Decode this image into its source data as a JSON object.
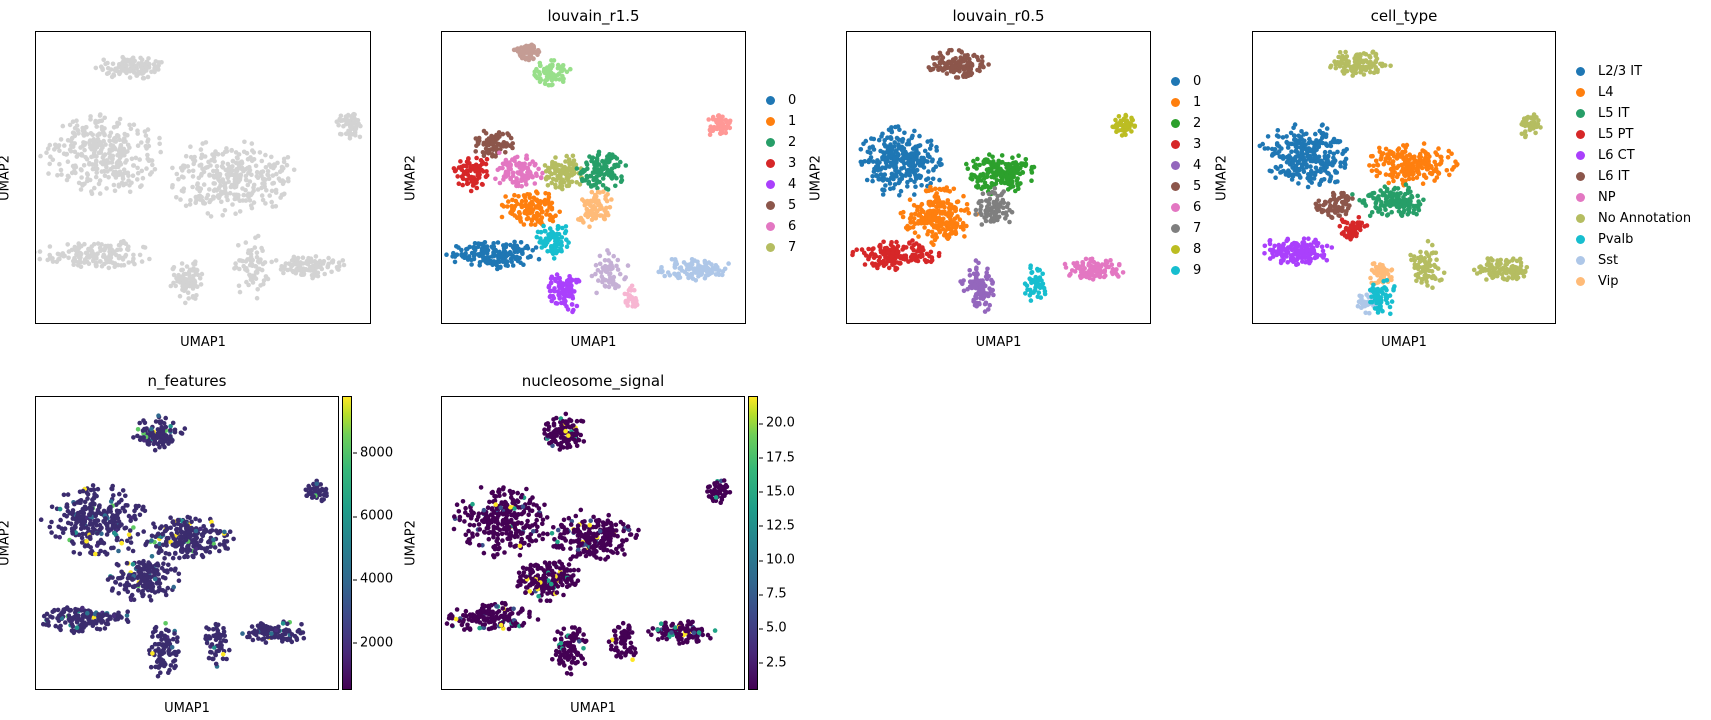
{
  "chart_data": [
    {
      "type": "scatter",
      "title": "",
      "xlabel": "UMAP1",
      "ylabel": "UMAP2",
      "color": "#d3d3d3",
      "clusters": [
        {
          "cx": 0.28,
          "cy": 0.12,
          "rx": 0.1,
          "ry": 0.04,
          "n": 120
        },
        {
          "cx": 0.93,
          "cy": 0.32,
          "rx": 0.04,
          "ry": 0.05,
          "n": 50
        },
        {
          "cx": 0.2,
          "cy": 0.42,
          "rx": 0.18,
          "ry": 0.14,
          "n": 320
        },
        {
          "cx": 0.58,
          "cy": 0.5,
          "rx": 0.2,
          "ry": 0.13,
          "n": 320
        },
        {
          "cx": 0.18,
          "cy": 0.76,
          "rx": 0.18,
          "ry": 0.05,
          "n": 160
        },
        {
          "cx": 0.45,
          "cy": 0.85,
          "rx": 0.05,
          "ry": 0.08,
          "n": 90
        },
        {
          "cx": 0.64,
          "cy": 0.8,
          "rx": 0.06,
          "ry": 0.1,
          "n": 70
        },
        {
          "cx": 0.82,
          "cy": 0.8,
          "rx": 0.1,
          "ry": 0.04,
          "n": 110
        }
      ]
    },
    {
      "type": "scatter",
      "title": "louvain_r1.5",
      "xlabel": "UMAP1",
      "ylabel": "UMAP2",
      "legend_title": "",
      "categories": [
        "0",
        "1",
        "2",
        "3",
        "4",
        "5",
        "6",
        "7"
      ],
      "colors": [
        "#1f77b4",
        "#ff7f0e",
        "#279e68",
        "#d62728",
        "#aa40fc",
        "#8c564b",
        "#e377c2",
        "#b5bd61"
      ],
      "extra_colors": [
        "#c49c94",
        "#98df8a",
        "#ff9896",
        "#17becf",
        "#aec7e8",
        "#f7b6d2",
        "#c5b0d5",
        "#ffbb78"
      ],
      "clusters": [
        {
          "cx": 0.28,
          "cy": 0.07,
          "rx": 0.05,
          "ry": 0.03,
          "n": 60,
          "c": "#c49c94"
        },
        {
          "cx": 0.36,
          "cy": 0.14,
          "rx": 0.06,
          "ry": 0.05,
          "n": 70,
          "c": "#98df8a"
        },
        {
          "cx": 0.91,
          "cy": 0.32,
          "rx": 0.04,
          "ry": 0.04,
          "n": 50,
          "c": "#ff9896"
        },
        {
          "cx": 0.17,
          "cy": 0.38,
          "rx": 0.07,
          "ry": 0.05,
          "n": 80,
          "c": "#8c564b"
        },
        {
          "cx": 0.1,
          "cy": 0.48,
          "rx": 0.06,
          "ry": 0.07,
          "n": 90,
          "c": "#d62728"
        },
        {
          "cx": 0.25,
          "cy": 0.48,
          "rx": 0.08,
          "ry": 0.06,
          "n": 100,
          "c": "#e377c2"
        },
        {
          "cx": 0.4,
          "cy": 0.48,
          "rx": 0.07,
          "ry": 0.06,
          "n": 100,
          "c": "#b5bd61"
        },
        {
          "cx": 0.52,
          "cy": 0.47,
          "rx": 0.08,
          "ry": 0.07,
          "n": 110,
          "c": "#279e68"
        },
        {
          "cx": 0.3,
          "cy": 0.6,
          "rx": 0.1,
          "ry": 0.06,
          "n": 130,
          "c": "#ff7f0e"
        },
        {
          "cx": 0.5,
          "cy": 0.6,
          "rx": 0.06,
          "ry": 0.07,
          "n": 80,
          "c": "#ffbb78"
        },
        {
          "cx": 0.37,
          "cy": 0.71,
          "rx": 0.06,
          "ry": 0.06,
          "n": 80,
          "c": "#17becf"
        },
        {
          "cx": 0.17,
          "cy": 0.76,
          "rx": 0.16,
          "ry": 0.05,
          "n": 170,
          "c": "#1f77b4"
        },
        {
          "cx": 0.4,
          "cy": 0.88,
          "rx": 0.06,
          "ry": 0.08,
          "n": 90,
          "c": "#aa40fc"
        },
        {
          "cx": 0.55,
          "cy": 0.82,
          "rx": 0.06,
          "ry": 0.08,
          "n": 60,
          "c": "#c5b0d5"
        },
        {
          "cx": 0.62,
          "cy": 0.9,
          "rx": 0.03,
          "ry": 0.05,
          "n": 30,
          "c": "#f7b6d2"
        },
        {
          "cx": 0.82,
          "cy": 0.81,
          "rx": 0.12,
          "ry": 0.04,
          "n": 110,
          "c": "#aec7e8"
        }
      ]
    },
    {
      "type": "scatter",
      "title": "louvain_r0.5",
      "xlabel": "UMAP1",
      "ylabel": "UMAP2",
      "legend_title": "",
      "categories": [
        "0",
        "1",
        "2",
        "3",
        "4",
        "5",
        "6",
        "7",
        "8",
        "9"
      ],
      "colors": [
        "#1f77b4",
        "#ff7f0e",
        "#2ca02c",
        "#d62728",
        "#9467bd",
        "#8c564b",
        "#e377c2",
        "#7f7f7f",
        "#bcbd22",
        "#17becf"
      ],
      "clusters": [
        {
          "cx": 0.36,
          "cy": 0.11,
          "rx": 0.1,
          "ry": 0.05,
          "n": 120,
          "c": "#8c564b"
        },
        {
          "cx": 0.91,
          "cy": 0.32,
          "rx": 0.04,
          "ry": 0.04,
          "n": 50,
          "c": "#bcbd22"
        },
        {
          "cx": 0.18,
          "cy": 0.44,
          "rx": 0.15,
          "ry": 0.12,
          "n": 300,
          "c": "#1f77b4"
        },
        {
          "cx": 0.5,
          "cy": 0.48,
          "rx": 0.12,
          "ry": 0.07,
          "n": 190,
          "c": "#2ca02c"
        },
        {
          "cx": 0.3,
          "cy": 0.63,
          "rx": 0.12,
          "ry": 0.1,
          "n": 220,
          "c": "#ff7f0e"
        },
        {
          "cx": 0.48,
          "cy": 0.6,
          "rx": 0.06,
          "ry": 0.07,
          "n": 90,
          "c": "#7f7f7f"
        },
        {
          "cx": 0.16,
          "cy": 0.76,
          "rx": 0.14,
          "ry": 0.05,
          "n": 160,
          "c": "#d62728"
        },
        {
          "cx": 0.43,
          "cy": 0.87,
          "rx": 0.06,
          "ry": 0.09,
          "n": 90,
          "c": "#9467bd"
        },
        {
          "cx": 0.62,
          "cy": 0.86,
          "rx": 0.04,
          "ry": 0.07,
          "n": 50,
          "c": "#17becf"
        },
        {
          "cx": 0.82,
          "cy": 0.81,
          "rx": 0.1,
          "ry": 0.04,
          "n": 110,
          "c": "#e377c2"
        }
      ]
    },
    {
      "type": "scatter",
      "title": "cell_type",
      "xlabel": "UMAP1",
      "ylabel": "UMAP2",
      "legend_title": "",
      "categories": [
        "L2/3 IT",
        "L4",
        "L5 IT",
        "L5 PT",
        "L6 CT",
        "L6 IT",
        "NP",
        "No Annotation",
        "Pvalb",
        "Sst",
        "Vip"
      ],
      "colors": [
        "#1f77b4",
        "#ff7f0e",
        "#279e68",
        "#d62728",
        "#aa40fc",
        "#8c564b",
        "#e377c2",
        "#b5bd61",
        "#17becf",
        "#aec7e8",
        "#ffbb78"
      ],
      "clusters": [
        {
          "cx": 0.35,
          "cy": 0.11,
          "rx": 0.1,
          "ry": 0.05,
          "n": 120,
          "c": "#b5bd61"
        },
        {
          "cx": 0.91,
          "cy": 0.32,
          "rx": 0.04,
          "ry": 0.04,
          "n": 50,
          "c": "#b5bd61"
        },
        {
          "cx": 0.18,
          "cy": 0.42,
          "rx": 0.15,
          "ry": 0.11,
          "n": 280,
          "c": "#1f77b4"
        },
        {
          "cx": 0.52,
          "cy": 0.45,
          "rx": 0.15,
          "ry": 0.07,
          "n": 200,
          "c": "#ff7f0e"
        },
        {
          "cx": 0.46,
          "cy": 0.58,
          "rx": 0.12,
          "ry": 0.06,
          "n": 140,
          "c": "#279e68"
        },
        {
          "cx": 0.27,
          "cy": 0.59,
          "rx": 0.06,
          "ry": 0.05,
          "n": 70,
          "c": "#8c564b"
        },
        {
          "cx": 0.33,
          "cy": 0.67,
          "rx": 0.05,
          "ry": 0.04,
          "n": 60,
          "c": "#d62728"
        },
        {
          "cx": 0.14,
          "cy": 0.75,
          "rx": 0.12,
          "ry": 0.05,
          "n": 150,
          "c": "#aa40fc"
        },
        {
          "cx": 0.43,
          "cy": 0.83,
          "rx": 0.05,
          "ry": 0.05,
          "n": 50,
          "c": "#ffbb78"
        },
        {
          "cx": 0.38,
          "cy": 0.92,
          "rx": 0.05,
          "ry": 0.04,
          "n": 40,
          "c": "#aec7e8"
        },
        {
          "cx": 0.42,
          "cy": 0.9,
          "rx": 0.05,
          "ry": 0.06,
          "n": 60,
          "c": "#17becf"
        },
        {
          "cx": 0.57,
          "cy": 0.8,
          "rx": 0.06,
          "ry": 0.09,
          "n": 70,
          "c": "#b5bd61"
        },
        {
          "cx": 0.82,
          "cy": 0.81,
          "rx": 0.1,
          "ry": 0.04,
          "n": 110,
          "c": "#b5bd61"
        }
      ]
    },
    {
      "type": "scatter",
      "title": "n_features",
      "xlabel": "UMAP1",
      "ylabel": "UMAP2",
      "colorbar": {
        "ticks": [
          "8000",
          "6000",
          "4000",
          "2000"
        ],
        "tick_values": [
          8000,
          6000,
          4000,
          2000
        ],
        "range": [
          500,
          9800
        ],
        "colormap": "viridis"
      },
      "base_color": "#3b2c6e",
      "accent_colors": [
        "#2c728e",
        "#31688e",
        "#21918c",
        "#472d7b",
        "#5ec962",
        "#fde725"
      ],
      "clusters": [
        {
          "cx": 0.4,
          "cy": 0.12,
          "rx": 0.08,
          "ry": 0.06,
          "n": 110
        },
        {
          "cx": 0.92,
          "cy": 0.32,
          "rx": 0.04,
          "ry": 0.04,
          "n": 50
        },
        {
          "cx": 0.2,
          "cy": 0.42,
          "rx": 0.16,
          "ry": 0.12,
          "n": 300
        },
        {
          "cx": 0.5,
          "cy": 0.48,
          "rx": 0.15,
          "ry": 0.08,
          "n": 230
        },
        {
          "cx": 0.35,
          "cy": 0.62,
          "rx": 0.12,
          "ry": 0.07,
          "n": 180
        },
        {
          "cx": 0.16,
          "cy": 0.75,
          "rx": 0.15,
          "ry": 0.05,
          "n": 160
        },
        {
          "cx": 0.42,
          "cy": 0.86,
          "rx": 0.06,
          "ry": 0.09,
          "n": 90
        },
        {
          "cx": 0.6,
          "cy": 0.84,
          "rx": 0.05,
          "ry": 0.08,
          "n": 60
        },
        {
          "cx": 0.79,
          "cy": 0.8,
          "rx": 0.11,
          "ry": 0.04,
          "n": 110
        }
      ]
    },
    {
      "type": "scatter",
      "title": "nucleosome_signal",
      "xlabel": "UMAP1",
      "ylabel": "UMAP2",
      "colorbar": {
        "ticks": [
          "20.0",
          "17.5",
          "15.0",
          "12.5",
          "10.0",
          "7.5",
          "5.0",
          "2.5"
        ],
        "tick_values": [
          20.0,
          17.5,
          15.0,
          12.5,
          10.0,
          7.5,
          5.0,
          2.5
        ],
        "range": [
          0.5,
          22.0
        ],
        "colormap": "viridis"
      },
      "base_color": "#440154",
      "accent_colors": [
        "#20a386",
        "#fde725",
        "#3b528b"
      ],
      "clusters": [
        {
          "cx": 0.4,
          "cy": 0.12,
          "rx": 0.08,
          "ry": 0.06,
          "n": 110
        },
        {
          "cx": 0.91,
          "cy": 0.32,
          "rx": 0.04,
          "ry": 0.04,
          "n": 50
        },
        {
          "cx": 0.2,
          "cy": 0.42,
          "rx": 0.16,
          "ry": 0.12,
          "n": 300
        },
        {
          "cx": 0.5,
          "cy": 0.48,
          "rx": 0.15,
          "ry": 0.08,
          "n": 230
        },
        {
          "cx": 0.35,
          "cy": 0.62,
          "rx": 0.12,
          "ry": 0.07,
          "n": 180
        },
        {
          "cx": 0.16,
          "cy": 0.75,
          "rx": 0.15,
          "ry": 0.05,
          "n": 160
        },
        {
          "cx": 0.42,
          "cy": 0.86,
          "rx": 0.06,
          "ry": 0.09,
          "n": 90
        },
        {
          "cx": 0.6,
          "cy": 0.84,
          "rx": 0.05,
          "ry": 0.08,
          "n": 60
        },
        {
          "cx": 0.79,
          "cy": 0.8,
          "rx": 0.11,
          "ry": 0.04,
          "n": 110
        }
      ]
    }
  ]
}
